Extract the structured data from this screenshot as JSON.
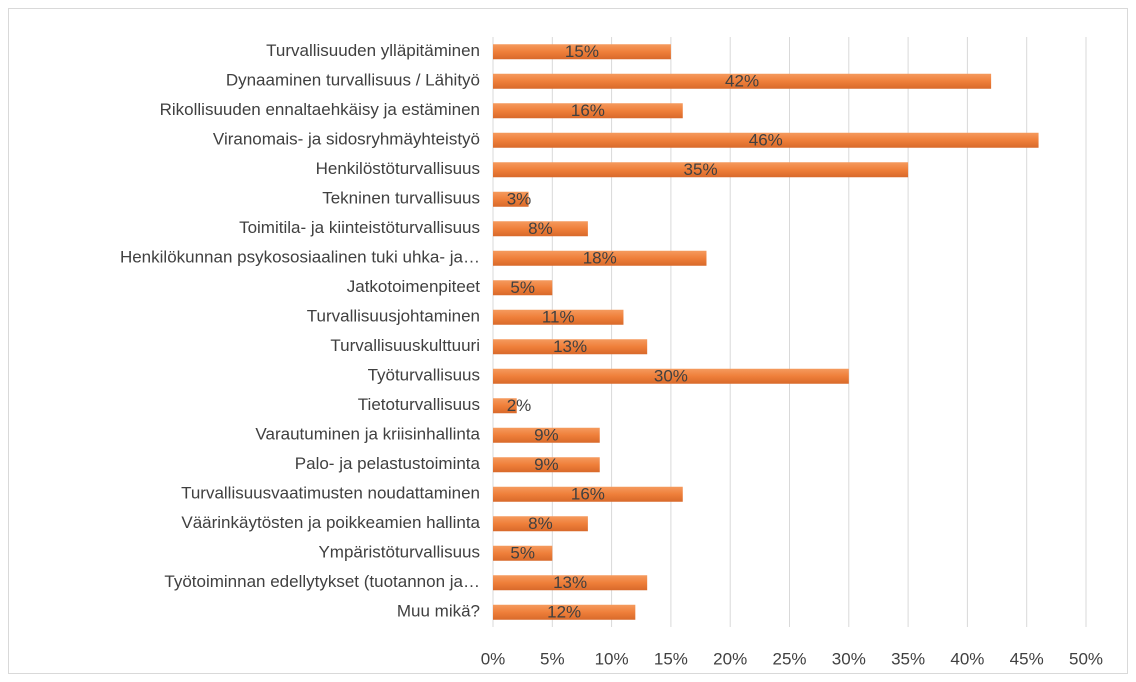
{
  "chart_data": {
    "type": "bar",
    "orientation": "horizontal",
    "categories": [
      "Turvallisuuden ylläpitäminen",
      "Dynaaminen turvallisuus / Lähityö",
      "Rikollisuuden ennaltaehkäisy ja estäminen",
      "Viranomais- ja sidosryhmäyhteistyö",
      "Henkilöstöturvallisuus",
      "Tekninen turvallisuus",
      "Toimitila- ja kiinteistöturvallisuus",
      "Henkilökunnan psykososiaalinen tuki uhka- ja…",
      "Jatkotoimenpiteet",
      "Turvallisuusjohtaminen",
      "Turvallisuuskulttuuri",
      "Työturvallisuus",
      "Tietoturvallisuus",
      "Varautuminen ja kriisinhallinta",
      "Palo- ja pelastustoiminta",
      "Turvallisuusvaatimusten noudattaminen",
      "Väärinkäytösten ja poikkeamien hallinta",
      "Ympäristöturvallisuus",
      "Työtoiminnan edellytykset (tuotannon ja…",
      "Muu mikä?"
    ],
    "values": [
      15,
      42,
      16,
      46,
      35,
      3,
      8,
      18,
      5,
      11,
      13,
      30,
      2,
      9,
      9,
      16,
      8,
      5,
      13,
      12
    ],
    "value_labels": [
      "15%",
      "42%",
      "16%",
      "46%",
      "35%",
      "3%",
      "8%",
      "18%",
      "5%",
      "11%",
      "13%",
      "30%",
      "2%",
      "9%",
      "9%",
      "16%",
      "8%",
      "5%",
      "13%",
      "12%"
    ],
    "color": "#ef7f3a",
    "xlim": [
      0,
      50
    ],
    "xticks": [
      {
        "value": 0,
        "label": "0%"
      },
      {
        "value": 5,
        "label": "5%"
      },
      {
        "value": 10,
        "label": "10%"
      },
      {
        "value": 15,
        "label": "15%"
      },
      {
        "value": 20,
        "label": "20%"
      },
      {
        "value": 25,
        "label": "25%"
      },
      {
        "value": 30,
        "label": "30%"
      },
      {
        "value": 35,
        "label": "35%"
      },
      {
        "value": 40,
        "label": "40%"
      },
      {
        "value": 45,
        "label": "45%"
      },
      {
        "value": 50,
        "label": "50%"
      }
    ],
    "grid": true
  }
}
